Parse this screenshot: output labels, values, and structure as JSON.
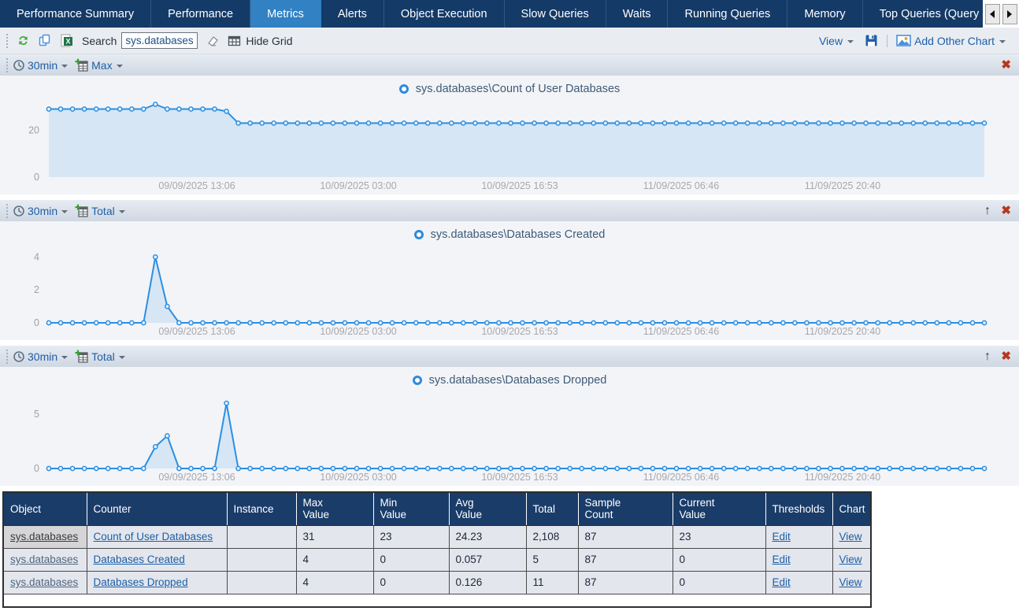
{
  "tabs": {
    "items": [
      {
        "label": "Performance Summary",
        "selected": false
      },
      {
        "label": "Performance",
        "selected": false
      },
      {
        "label": "Metrics",
        "selected": true
      },
      {
        "label": "Alerts",
        "selected": false
      },
      {
        "label": "Object Execution",
        "selected": false
      },
      {
        "label": "Slow Queries",
        "selected": false
      },
      {
        "label": "Waits",
        "selected": false
      },
      {
        "label": "Running Queries",
        "selected": false
      },
      {
        "label": "Memory",
        "selected": false
      },
      {
        "label": "Top Queries (Query",
        "selected": false
      }
    ]
  },
  "toolbar": {
    "search_label": "Search",
    "search_value": "sys.databases",
    "hide_grid_label": "Hide Grid",
    "view_label": "View",
    "add_other_chart_label": "Add Other Chart",
    "icons": [
      "refresh-icon",
      "copy-icon",
      "excel-export-icon",
      "eraser-icon",
      "grid-icon",
      "save-icon",
      "chart-image-icon"
    ]
  },
  "colors": {
    "navy": "#143a67",
    "selected_tab": "#3181c3",
    "line_blue": "#2b8fe2",
    "area_fill": "#d7e6f5",
    "link_blue": "#1d5fa6",
    "close_red": "#b6371e",
    "grid_header": "#1a3c69"
  },
  "chart_data": [
    {
      "type": "area",
      "title": "sys.databases\\Count of User Databases",
      "interval": "30min",
      "aggregation": "Max",
      "can_move_up": false,
      "legend_position": "top-center",
      "grid": false,
      "ylim": [
        0,
        31.5
      ],
      "yticks": [
        0,
        20
      ],
      "x_labels": [
        "09/09/2025 13:06",
        "10/09/2025 03:00",
        "10/09/2025 16:53",
        "11/09/2025 06:46",
        "11/09/2025 20:40"
      ],
      "values": [
        29,
        29,
        29,
        29,
        29,
        29,
        29,
        29,
        29,
        31,
        29,
        29,
        29,
        29,
        29,
        28,
        23,
        23,
        23,
        23,
        23,
        23,
        23,
        23,
        23,
        23,
        23,
        23,
        23,
        23,
        23,
        23,
        23,
        23,
        23,
        23,
        23,
        23,
        23,
        23,
        23,
        23,
        23,
        23,
        23,
        23,
        23,
        23,
        23,
        23,
        23,
        23,
        23,
        23,
        23,
        23,
        23,
        23,
        23,
        23,
        23,
        23,
        23,
        23,
        23,
        23,
        23,
        23,
        23,
        23,
        23,
        23,
        23,
        23,
        23,
        23,
        23,
        23,
        23,
        23
      ]
    },
    {
      "type": "area",
      "title": "sys.databases\\Databases Created",
      "interval": "30min",
      "aggregation": "Total",
      "can_move_up": true,
      "legend_position": "top-center",
      "grid": false,
      "ylim": [
        0,
        4.5
      ],
      "yticks": [
        0,
        2,
        4
      ],
      "x_labels": [
        "09/09/2025 13:06",
        "10/09/2025 03:00",
        "10/09/2025 16:53",
        "11/09/2025 06:46",
        "11/09/2025 20:40"
      ],
      "values": [
        0,
        0,
        0,
        0,
        0,
        0,
        0,
        0,
        0,
        4,
        1,
        0,
        0,
        0,
        0,
        0,
        0,
        0,
        0,
        0,
        0,
        0,
        0,
        0,
        0,
        0,
        0,
        0,
        0,
        0,
        0,
        0,
        0,
        0,
        0,
        0,
        0,
        0,
        0,
        0,
        0,
        0,
        0,
        0,
        0,
        0,
        0,
        0,
        0,
        0,
        0,
        0,
        0,
        0,
        0,
        0,
        0,
        0,
        0,
        0,
        0,
        0,
        0,
        0,
        0,
        0,
        0,
        0,
        0,
        0,
        0,
        0,
        0,
        0,
        0,
        0,
        0,
        0,
        0,
        0
      ]
    },
    {
      "type": "area",
      "title": "sys.databases\\Databases Dropped",
      "interval": "30min",
      "aggregation": "Total",
      "can_move_up": true,
      "legend_position": "top-center",
      "grid": false,
      "ylim": [
        0,
        6.8
      ],
      "yticks": [
        0,
        5
      ],
      "x_labels": [
        "09/09/2025 13:06",
        "10/09/2025 03:00",
        "10/09/2025 16:53",
        "11/09/2025 06:46",
        "11/09/2025 20:40"
      ],
      "values": [
        0,
        0,
        0,
        0,
        0,
        0,
        0,
        0,
        0,
        2,
        3,
        0,
        0,
        0,
        0,
        6,
        0,
        0,
        0,
        0,
        0,
        0,
        0,
        0,
        0,
        0,
        0,
        0,
        0,
        0,
        0,
        0,
        0,
        0,
        0,
        0,
        0,
        0,
        0,
        0,
        0,
        0,
        0,
        0,
        0,
        0,
        0,
        0,
        0,
        0,
        0,
        0,
        0,
        0,
        0,
        0,
        0,
        0,
        0,
        0,
        0,
        0,
        0,
        0,
        0,
        0,
        0,
        0,
        0,
        0,
        0,
        0,
        0,
        0,
        0,
        0,
        0,
        0,
        0,
        0
      ]
    }
  ],
  "table": {
    "columns": [
      "Object",
      "Counter",
      "Instance",
      "Max\nValue",
      "Min\nValue",
      "Avg\nValue",
      "Total",
      "Sample\nCount",
      "Current\nValue",
      "Thresholds",
      "Chart"
    ],
    "rows": [
      {
        "object": "sys.databases",
        "counter": "Count of User Databases",
        "instance": "",
        "max": "31",
        "min": "23",
        "avg": "24.23",
        "total": "2,108",
        "samples": "87",
        "current": "23",
        "thresholds": "Edit",
        "chart": "View"
      },
      {
        "object": "sys.databases",
        "counter": "Databases Created",
        "instance": "",
        "max": "4",
        "min": "0",
        "avg": "0.057",
        "total": "5",
        "samples": "87",
        "current": "0",
        "thresholds": "Edit",
        "chart": "View"
      },
      {
        "object": "sys.databases",
        "counter": "Databases Dropped",
        "instance": "",
        "max": "4",
        "min": "0",
        "avg": "0.126",
        "total": "11",
        "samples": "87",
        "current": "0",
        "thresholds": "Edit",
        "chart": "View"
      }
    ]
  }
}
